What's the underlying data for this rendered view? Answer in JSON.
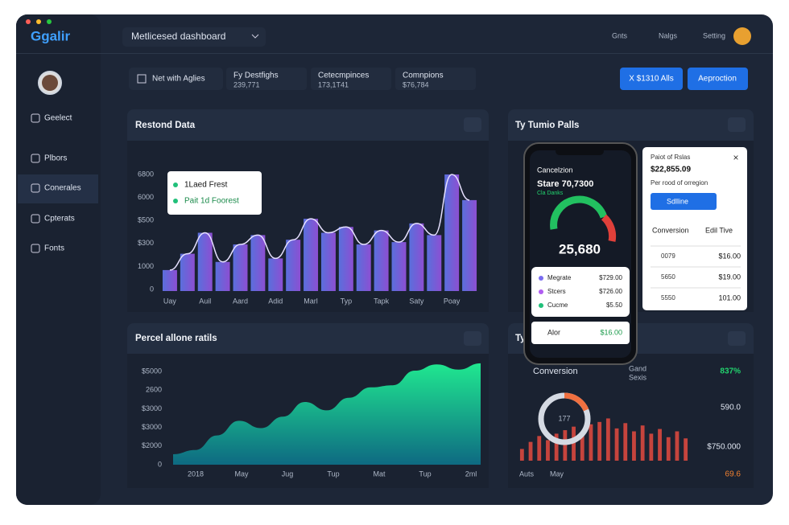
{
  "app": {
    "logo": "Ggalir",
    "dashboard": "Metlicesed dashboard",
    "top_links": [
      "Gnts",
      "Nalgs",
      "Setting"
    ]
  },
  "sidebar": [
    "Geelect",
    "Plbors",
    "Conerales",
    "Cpterats",
    "Fonts"
  ],
  "filter": "Net with Aglies",
  "stats": [
    {
      "label": "Fy Destfighs",
      "value": "239,771"
    },
    {
      "label": "Cetecmpinces",
      "value": "173,1T41"
    },
    {
      "label": "Comnpions",
      "value": "$76,784"
    }
  ],
  "buttons": [
    "X $1310 Alls",
    "Aeproction"
  ],
  "bar_panel": {
    "title": "Restond Data",
    "y_labels": [
      "6800",
      "6000",
      "$500",
      "$300",
      "1000",
      "0"
    ],
    "legend": [
      "1Laed Frest",
      "Pait 1d Foorest"
    ],
    "chart": {
      "type": "bar",
      "categories": [
        "Uay",
        null,
        "Auil",
        null,
        "Aard",
        null,
        "Adid",
        null,
        "Marl",
        null,
        "Typ",
        null,
        "Tapk",
        null,
        "Saty",
        null,
        "Poay",
        null
      ],
      "values": [
        18,
        32,
        50,
        25,
        40,
        48,
        28,
        44,
        62,
        50,
        55,
        40,
        52,
        42,
        58,
        48,
        100,
        78
      ],
      "ylim": [
        0,
        100
      ],
      "colors": [
        "#5a6fdc",
        "#8c4fd2"
      ]
    }
  },
  "area_panel": {
    "title": "Percel allone ratils",
    "y_labels": [
      "$5000",
      "2600",
      "$3000",
      "$3000",
      "$2000",
      "0"
    ],
    "chart": {
      "type": "area",
      "categories": [
        "2018",
        "May",
        "Jug",
        "Tup",
        "Mat",
        "Tup",
        "2ml"
      ],
      "values": [
        10,
        14,
        28,
        42,
        35,
        46,
        60,
        52,
        64,
        74,
        76,
        90,
        96,
        91,
        97
      ],
      "ylim": [
        0,
        100
      ],
      "colors": [
        "#20e890",
        "#0e6a82"
      ]
    }
  },
  "phone": {
    "title": "Cancelzion",
    "subtitle": "Stare 70,7300",
    "note": "Cla Danks",
    "gauge_value": "25,680",
    "items": [
      {
        "name": "Megrate",
        "value": "$729.00",
        "color": "#7a6cf0"
      },
      {
        "name": "Stcers",
        "value": "$726.00",
        "color": "#b05cf0"
      },
      {
        "name": "Cucme",
        "value": "$5.50",
        "color": "#21c07a"
      }
    ],
    "footer": {
      "name": "Alor",
      "value": "$16.00"
    }
  },
  "top_right_panel": {
    "title": "Ty Tumio Palls"
  },
  "popup": {
    "title": "Paiot of Rslas",
    "amount": "$22,855.09",
    "subtitle": "Per rood of orregion",
    "button": "Sdlline",
    "headers": [
      "Conversion",
      "Edil Tive"
    ],
    "rows": [
      [
        "0079",
        "$16.00"
      ],
      [
        "5650",
        "$19.00"
      ],
      [
        "5550",
        "101.00"
      ]
    ]
  },
  "bottom_right_panel": {
    "title": "Ty",
    "heading": "Conversion",
    "legend": [
      "Gand",
      "Sexis"
    ],
    "donut": "177",
    "labels": [
      "837%",
      "590.0",
      "$750.000"
    ],
    "x_labels": [
      "Auts",
      "May"
    ],
    "corner": "69.6",
    "chart": {
      "type": "bar",
      "values": [
        20,
        32,
        42,
        35,
        46,
        52,
        58,
        45,
        62,
        66,
        72,
        55,
        64,
        50,
        60,
        46,
        54,
        40,
        50,
        38
      ],
      "ylim": [
        0,
        100
      ],
      "color": "#d9483f"
    }
  }
}
